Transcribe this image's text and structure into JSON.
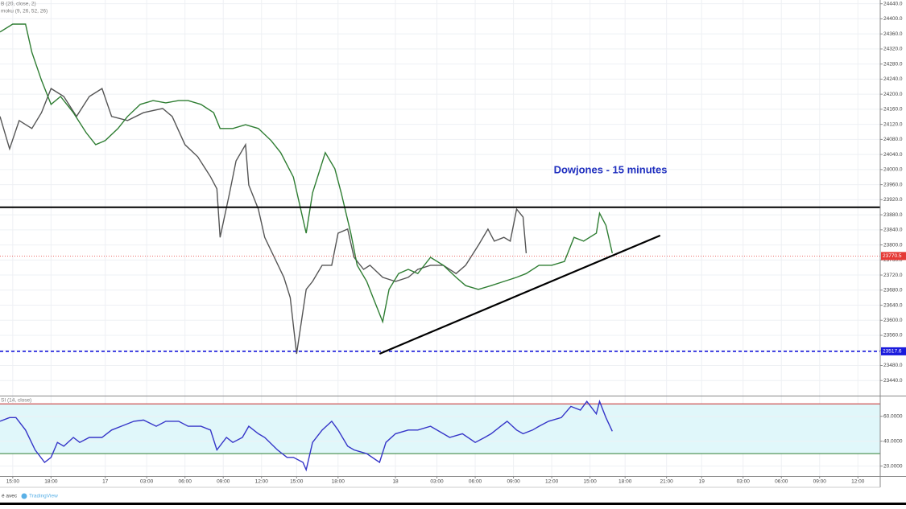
{
  "chart_data": [
    {
      "type": "line",
      "annotation": "Dowjones - 15 minutes",
      "indicators": [
        "B (20, close, 2)",
        "moku (9, 26, 52, 26)"
      ],
      "xlim": [
        0,
        276
      ],
      "xticks": [
        {
          "value": 4,
          "label": "15:00"
        },
        {
          "value": 16,
          "label": "18:00"
        },
        {
          "value": 33,
          "label": "17"
        },
        {
          "value": 46,
          "label": "03:00"
        },
        {
          "value": 58,
          "label": "06:00"
        },
        {
          "value": 70,
          "label": "09:00"
        },
        {
          "value": 82,
          "label": "12:00"
        },
        {
          "value": 93,
          "label": "15:00"
        },
        {
          "value": 106,
          "label": "18:00"
        },
        {
          "value": 124,
          "label": "18"
        },
        {
          "value": 137,
          "label": "03:00"
        },
        {
          "value": 149,
          "label": "06:00"
        },
        {
          "value": 161,
          "label": "09:00"
        },
        {
          "value": 173,
          "label": "12:00"
        },
        {
          "value": 185,
          "label": "15:00"
        },
        {
          "value": 196,
          "label": "18:00"
        },
        {
          "value": 209,
          "label": "21:00"
        },
        {
          "value": 220,
          "label": "19"
        },
        {
          "value": 233,
          "label": "03:00"
        },
        {
          "value": 245,
          "label": "06:00"
        },
        {
          "value": 257,
          "label": "09:00"
        },
        {
          "value": 269,
          "label": "12:00"
        }
      ],
      "ylim": [
        23400,
        24450
      ],
      "yticks": [
        {
          "value": 23440,
          "label": "23440.0"
        },
        {
          "value": 23480,
          "label": "23480.0"
        },
        {
          "value": 23520,
          "label": "23520.0"
        },
        {
          "value": 23560,
          "label": "23560.0"
        },
        {
          "value": 23600,
          "label": "23600.0"
        },
        {
          "value": 23640,
          "label": "23640.0"
        },
        {
          "value": 23680,
          "label": "23680.0"
        },
        {
          "value": 23720,
          "label": "23720.0"
        },
        {
          "value": 23760,
          "label": "23760.0"
        },
        {
          "value": 23800,
          "label": "23800.0"
        },
        {
          "value": 23840,
          "label": "23840.0"
        },
        {
          "value": 23880,
          "label": "23880.0"
        },
        {
          "value": 23920,
          "label": "23920.0"
        },
        {
          "value": 23960,
          "label": "23960.0"
        },
        {
          "value": 24000,
          "label": "24000.0"
        },
        {
          "value": 24040,
          "label": "24040.0"
        },
        {
          "value": 24080,
          "label": "24080.0"
        },
        {
          "value": 24120,
          "label": "24120.0"
        },
        {
          "value": 24160,
          "label": "24160.0"
        },
        {
          "value": 24200,
          "label": "24200.0"
        },
        {
          "value": 24240,
          "label": "24240.0"
        },
        {
          "value": 24280,
          "label": "24280.0"
        },
        {
          "value": 24320,
          "label": "24320.0"
        },
        {
          "value": 24360,
          "label": "24360.0"
        },
        {
          "value": 24400,
          "label": "24400.0"
        },
        {
          "value": 24440,
          "label": "24440.0"
        }
      ],
      "grid": true,
      "series": [
        {
          "color": "#555555",
          "x": [
            0,
            3,
            6,
            10,
            13,
            16,
            20,
            24,
            28,
            32,
            35,
            40,
            45,
            51,
            54,
            58,
            62,
            66,
            68,
            69,
            72,
            74,
            77,
            78,
            81,
            83,
            86,
            89,
            91,
            93,
            96,
            98,
            101,
            104,
            106,
            109,
            111,
            114,
            116,
            120,
            124,
            128,
            131,
            135,
            139,
            143,
            146,
            150,
            153,
            155,
            158,
            160,
            162,
            164,
            165
          ],
          "values": [
            24141,
            24055,
            24130,
            24109,
            24151,
            24215,
            24194,
            24141,
            24194,
            24215,
            24141,
            24130,
            24151,
            24162,
            24141,
            24066,
            24034,
            23981,
            23949,
            23820,
            23938,
            24023,
            24066,
            23959,
            23895,
            23820,
            23767,
            23714,
            23660,
            23511,
            23682,
            23703,
            23746,
            23746,
            23831,
            23842,
            23767,
            23735,
            23746,
            23714,
            23703,
            23714,
            23735,
            23746,
            23746,
            23724,
            23746,
            23799,
            23842,
            23810,
            23820,
            23810,
            23895,
            23874,
            23778
          ]
        },
        {
          "color": "#2e7d32",
          "x": [
            0,
            4,
            8,
            10,
            13,
            16,
            19,
            23,
            27,
            30,
            33,
            37,
            40,
            44,
            48,
            52,
            56,
            59,
            63,
            67,
            69,
            73,
            77,
            81,
            85,
            88,
            92,
            96,
            98,
            102,
            105,
            107,
            110,
            112,
            115,
            117,
            120,
            122,
            125,
            128,
            131,
            135,
            139,
            143,
            146,
            150,
            154,
            158,
            162,
            165,
            169,
            173,
            177,
            180,
            183,
            187,
            188,
            190,
            192
          ],
          "values": [
            24365,
            24386,
            24386,
            24311,
            24237,
            24173,
            24194,
            24151,
            24098,
            24066,
            24077,
            24109,
            24141,
            24173,
            24183,
            24177,
            24183,
            24183,
            24173,
            24151,
            24109,
            24109,
            24119,
            24109,
            24077,
            24045,
            23980,
            23831,
            23938,
            24045,
            24002,
            23938,
            23831,
            23746,
            23703,
            23660,
            23596,
            23682,
            23724,
            23735,
            23724,
            23767,
            23746,
            23714,
            23692,
            23682,
            23692,
            23703,
            23714,
            23724,
            23746,
            23746,
            23756,
            23820,
            23810,
            23831,
            23884,
            23852,
            23778
          ]
        }
      ],
      "levels": [
        {
          "value": 23900,
          "color": "#000000",
          "style": "solid"
        },
        {
          "value": 23517.6,
          "label": "23517.6",
          "color": "#1a1adc",
          "style": "dashed"
        },
        {
          "value": 23770.5,
          "label": "23770.5",
          "color": "#e53935",
          "style": "dotted"
        }
      ],
      "trendline": {
        "x": [
          119,
          207
        ],
        "values": [
          23511,
          23825
        ],
        "color": "#000000"
      }
    },
    {
      "type": "line",
      "indicators": [
        "SI (14, close)"
      ],
      "xlim": [
        0,
        276
      ],
      "ylim": [
        12,
        76
      ],
      "yticks": [
        {
          "value": 20,
          "label": "20.0000"
        },
        {
          "value": 40,
          "label": "40.0000"
        },
        {
          "value": 60,
          "label": "60.0000"
        }
      ],
      "grid": true,
      "bands": [
        {
          "value": 70,
          "color": "#c62828"
        },
        {
          "value": 30,
          "color": "#2e7d32"
        }
      ],
      "band_fill": "#e0f7fa",
      "series": [
        {
          "color": "#3535c8",
          "x": [
            0,
            3,
            5,
            8,
            11,
            14,
            16,
            18,
            20,
            23,
            25,
            28,
            32,
            35,
            38,
            42,
            45,
            49,
            52,
            56,
            59,
            63,
            66,
            68,
            71,
            73,
            76,
            78,
            81,
            83,
            87,
            90,
            92,
            95,
            96,
            98,
            101,
            104,
            106,
            109,
            111,
            115,
            119,
            121,
            124,
            128,
            131,
            135,
            139,
            141,
            145,
            149,
            152,
            154,
            157,
            159,
            162,
            164,
            167,
            169,
            172,
            176,
            179,
            182,
            184,
            187,
            188,
            190,
            192
          ],
          "values": [
            56,
            59,
            59,
            49,
            33,
            23,
            27,
            39,
            36,
            43,
            39,
            43,
            43,
            49,
            52,
            56,
            57,
            52,
            56,
            56,
            52,
            52,
            49,
            33,
            43,
            39,
            43,
            52,
            46,
            43,
            33,
            27,
            27,
            23,
            17,
            39,
            49,
            56,
            49,
            36,
            33,
            30,
            23,
            39,
            46,
            49,
            49,
            52,
            46,
            43,
            46,
            39,
            43,
            46,
            52,
            56,
            49,
            46,
            49,
            52,
            56,
            59,
            68,
            65,
            72,
            62,
            72,
            59,
            48
          ]
        }
      ]
    }
  ],
  "footer": {
    "text": "é avec",
    "brand": "TradingView"
  }
}
